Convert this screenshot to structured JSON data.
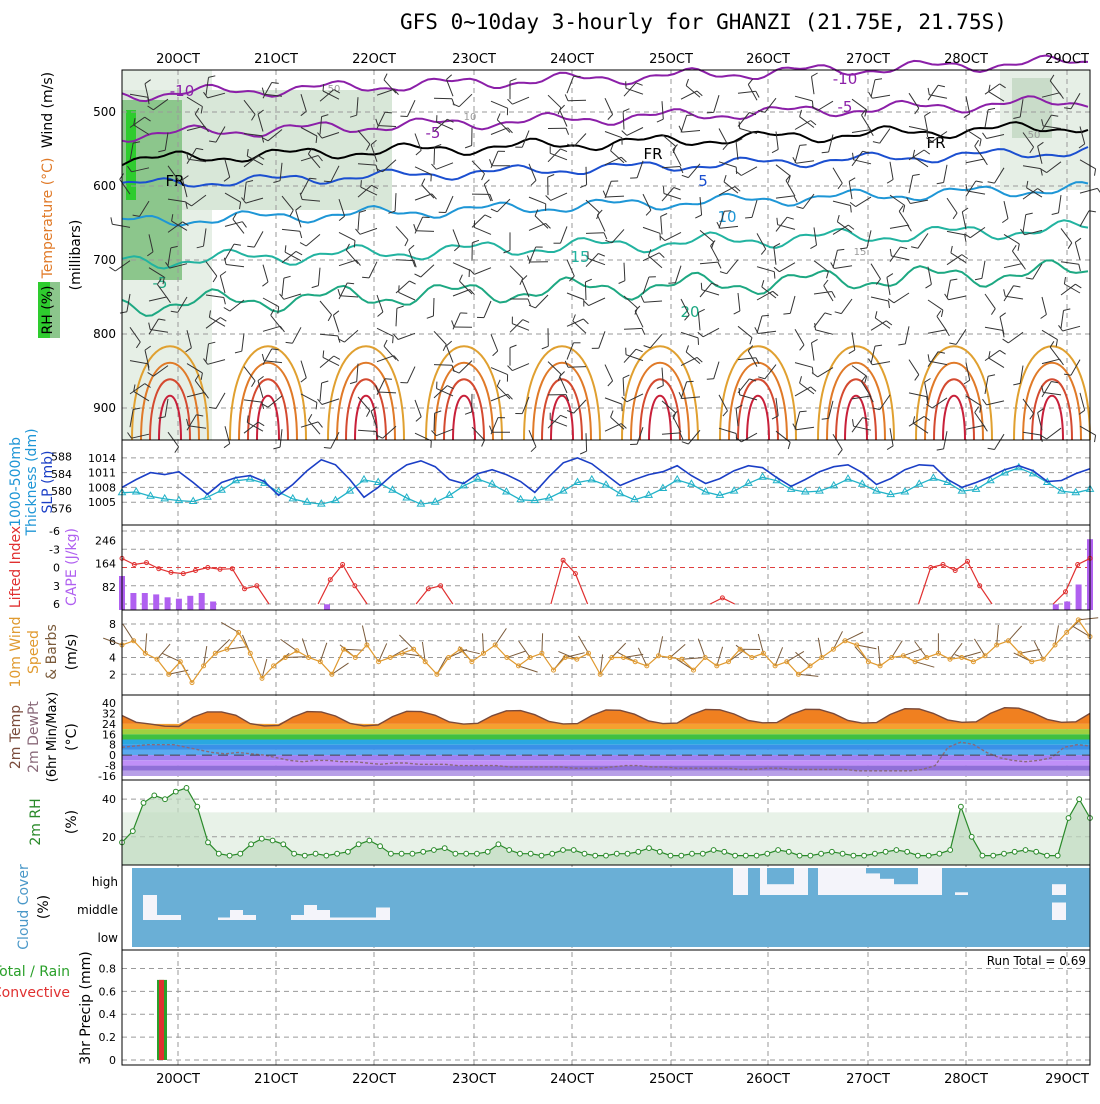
{
  "title": "GFS 0~10day 3-hourly for GHANZI (21.75E, 21.75S)",
  "dates": [
    "20OCT",
    "21OCT",
    "22OCT",
    "23OCT",
    "24OCT",
    "25OCT",
    "26OCT",
    "27OCT",
    "28OCT",
    "29OCT"
  ],
  "panels": {
    "upper": {
      "ylabel_rh": "RH (%)",
      "ylabel_temp": "Temperature (°C)",
      "ylabel_wind": "Wind (m/s)",
      "ylabel_p": "(millibars)",
      "p_ticks": [
        500,
        600,
        700,
        800,
        900
      ]
    },
    "slp": {
      "label_a": "1000-500mb",
      "label_b": "Thickness (dm)",
      "label_c": "SLP (mb)",
      "thick_ticks": [
        588,
        584,
        580,
        576
      ],
      "slp_ticks": [
        1014,
        1011,
        1008,
        1005
      ]
    },
    "cape": {
      "label_li": "Lifted Index",
      "label_cape": "CAPE (J/kg)",
      "li_ticks": [
        "-6",
        "-3",
        "0",
        "3",
        "6"
      ],
      "cape_ticks": [
        "246",
        "164",
        "82"
      ]
    },
    "wind": {
      "label_a": "10m Wind",
      "label_b": "Speed",
      "label_c": "& Barbs",
      "label_d": "(m/s)",
      "ticks": [
        2,
        4,
        6,
        8
      ]
    },
    "temp": {
      "label_a": "2m Temp",
      "label_b": "2m DewPt",
      "label_c": "(6hr Min/Max)",
      "label_d": "(°C)",
      "ticks": [
        40,
        32,
        24,
        16,
        8,
        0,
        -8,
        -16
      ]
    },
    "rh": {
      "label_a": "2m RH",
      "label_b": "(%)",
      "ticks": [
        20,
        40
      ]
    },
    "cloud": {
      "label_a": "Cloud Cover",
      "label_b": "(%)",
      "levels": [
        "high",
        "middle",
        "low"
      ]
    },
    "precip": {
      "label_a": "Total / Rain",
      "label_b": "Convective",
      "label_c": "3hr Precip (mm)",
      "run_total": "Run Total = 0.69",
      "ticks": [
        "0",
        "0.2",
        "0.4",
        "0.6",
        "0.8"
      ]
    }
  },
  "contour_labels": [
    "-10",
    "-5",
    "FR",
    "5",
    "10",
    "15",
    "20",
    "-10",
    "-5",
    "FR",
    "FR",
    "-5",
    "50",
    "50",
    "10",
    "15"
  ],
  "chart_data": {
    "type": "line",
    "x_axis": "3-hourly time steps, 19 Oct 21Z to 29 Oct 21Z",
    "slp_mb": [
      1008.0,
      1009.6,
      1011.0,
      1010.6,
      1011.2,
      1009.0,
      1006.6,
      1009.0,
      1010.0,
      1010.4,
      1009.2,
      1006.4,
      1008.6,
      1011.4,
      1013.6,
      1012.6,
      1009.6,
      1006.0,
      1008.0,
      1010.6,
      1012.6,
      1013.4,
      1012.2,
      1009.6,
      1008.8,
      1010.8,
      1011.6,
      1010.6,
      1009.2,
      1007.0,
      1010.2,
      1013.0,
      1014.0,
      1012.8,
      1010.6,
      1008.4,
      1009.6,
      1010.6,
      1011.2,
      1012.4,
      1010.4,
      1008.8,
      1009.8,
      1011.4,
      1012.4,
      1012.0,
      1010.0,
      1008.2,
      1009.6,
      1011.2,
      1012.2,
      1012.6,
      1011.0,
      1008.6,
      1009.8,
      1011.6,
      1012.6,
      1012.4,
      1009.6,
      1008.0,
      1009.0,
      1010.2,
      1011.6,
      1012.4,
      1011.4,
      1009.2,
      1009.4,
      1010.8,
      1011.8
    ],
    "thickness_dm": [
      579.6,
      579.8,
      578.8,
      578.2,
      577.8,
      577.6,
      578.6,
      580.2,
      582.4,
      582.8,
      581.8,
      579.8,
      578.2,
      577.4,
      577.0,
      577.8,
      580.0,
      582.6,
      582.0,
      580.2,
      578.4,
      577.0,
      577.4,
      579.0,
      581.2,
      582.8,
      581.6,
      579.8,
      578.0,
      577.8,
      578.4,
      580.0,
      582.0,
      582.6,
      581.4,
      579.4,
      578.0,
      579.0,
      580.6,
      582.6,
      581.6,
      579.8,
      579.0,
      580.0,
      581.8,
      583.2,
      582.4,
      580.4,
      579.8,
      580.0,
      581.2,
      582.8,
      581.6,
      580.0,
      579.2,
      579.8,
      581.6,
      583.0,
      582.0,
      580.0,
      580.4,
      582.4,
      584.2,
      585.4,
      584.0,
      582.0,
      580.0,
      579.6,
      580.4
    ],
    "lifted_index": [
      -1.5,
      -0.5,
      -0.8,
      0.2,
      0.8,
      1.0,
      0.5,
      0.0,
      0.3,
      0.2,
      3.5,
      3.0,
      6,
      6,
      6,
      6,
      6,
      2.0,
      -0.5,
      3.0,
      6,
      6,
      6,
      6,
      6,
      3.5,
      3.0,
      6,
      6,
      6,
      6,
      6,
      6,
      6,
      6,
      6,
      -1.2,
      1.0,
      6,
      6,
      6,
      6,
      6,
      6,
      6,
      6,
      6,
      6,
      6,
      5.0,
      6,
      6,
      6,
      6,
      6,
      6,
      6,
      6,
      6,
      6,
      6,
      6,
      6,
      6,
      6,
      6,
      0.0,
      -0.5,
      0.5,
      -1.0,
      3.0,
      6,
      6,
      6,
      6,
      6,
      6,
      4.0,
      -0.5,
      -1.5
    ],
    "cape_jkg": [
      120,
      60,
      60,
      55,
      45,
      40,
      50,
      60,
      30,
      0,
      0,
      0,
      0,
      0,
      0,
      0,
      0,
      0,
      20,
      0,
      0,
      0,
      0,
      0,
      0,
      0,
      0,
      0,
      0,
      0,
      0,
      0,
      0,
      0,
      0,
      0,
      0,
      0,
      0,
      0,
      0,
      0,
      0,
      0,
      0,
      0,
      0,
      0,
      0,
      0,
      0,
      0,
      0,
      0,
      0,
      0,
      0,
      0,
      0,
      0,
      0,
      0,
      0,
      0,
      0,
      0,
      0,
      0,
      0,
      0,
      0,
      0,
      0,
      0,
      0,
      0,
      0,
      0,
      0,
      0,
      0,
      0,
      20,
      30,
      90,
      250
    ],
    "wind_speed_ms": [
      5.5,
      6.0,
      4.5,
      3.8,
      2.0,
      3.5,
      1.0,
      3.0,
      4.5,
      5.0,
      7.0,
      4.5,
      1.5,
      3.0,
      4.0,
      4.8,
      4.0,
      3.5,
      2.0,
      5.0,
      4.0,
      5.5,
      3.5,
      4.0,
      4.5,
      5.0,
      3.5,
      2.0,
      4.0,
      5.0,
      3.5,
      4.5,
      5.5,
      4.0,
      3.0,
      4.0,
      4.5,
      2.5,
      4.0,
      3.8,
      4.5,
      2.0,
      4.0,
      4.0,
      3.5,
      3.0,
      4.2,
      4.0,
      3.8,
      2.5,
      4.0,
      3.0,
      3.5,
      5.0,
      4.0,
      4.5,
      3.0,
      3.5,
      2.0,
      3.0,
      4.0,
      5.0,
      6.0,
      5.5,
      3.5,
      3.0,
      4.0,
      4.2,
      3.5,
      4.0,
      4.5,
      3.8,
      4.0,
      3.5,
      4.2,
      5.5,
      6.0,
      4.5,
      3.5,
      3.8,
      5.5,
      7.0,
      8.5,
      6.5
    ],
    "temp_2m_c": [
      30.4,
      25.2,
      23.8,
      22.2,
      22.0,
      29.2,
      33.2,
      33.2,
      30.6,
      24.2,
      22.4,
      22.8,
      29.2,
      33.4,
      33.2,
      30.0,
      24.4,
      22.4,
      23.2,
      29.6,
      33.6,
      33.4,
      30.6,
      25.4,
      23.8,
      24.4,
      30.2,
      34.0,
      34.2,
      31.0,
      25.8,
      24.0,
      24.2,
      30.4,
      34.6,
      34.4,
      31.4,
      26.2,
      24.2,
      24.6,
      31.0,
      35.0,
      34.8,
      31.6,
      26.6,
      24.8,
      25.0,
      31.2,
      35.2,
      35.0,
      31.8,
      26.6,
      24.6,
      25.0,
      31.4,
      35.6,
      35.4,
      32.0,
      27.0,
      25.2,
      25.6,
      32.0,
      36.4,
      36.0,
      32.4,
      27.4,
      25.2,
      25.6,
      32.0
    ],
    "dewpt_2m_c": [
      6,
      7,
      8,
      8,
      8,
      6,
      4,
      2,
      1,
      2,
      1,
      0,
      -2,
      -4,
      -5,
      -4,
      -4,
      -5,
      -5,
      -6,
      -7,
      -6,
      -6,
      -7,
      -7,
      -7,
      -8,
      -8,
      -8,
      -8,
      -9,
      -9,
      -9,
      -9,
      -9,
      -10,
      -10,
      -10,
      -9,
      -8,
      -8,
      -9,
      -9,
      -10,
      -10,
      -10,
      -10,
      -10,
      -11,
      -11,
      -10,
      -10,
      -11,
      -11,
      -11,
      -11,
      -11,
      -12,
      -12,
      -12,
      -12,
      -12,
      -11,
      -8,
      6,
      10,
      8,
      2,
      -2,
      -4,
      -5,
      -4,
      -2,
      6,
      8,
      7
    ],
    "rh_2m_pct": [
      17,
      23,
      38,
      42,
      40,
      44,
      46,
      36,
      17,
      11,
      10,
      11,
      16,
      19,
      18,
      16,
      11,
      10,
      11,
      10,
      11,
      12,
      16,
      18,
      15,
      11,
      11,
      11,
      12,
      13,
      14,
      11,
      11,
      11,
      12,
      16,
      13,
      11,
      11,
      10,
      11,
      13,
      13,
      11,
      10,
      10,
      11,
      11,
      12,
      14,
      12,
      10,
      10,
      11,
      11,
      13,
      12,
      10,
      10,
      10,
      11,
      13,
      12,
      10,
      10,
      11,
      12,
      11,
      10,
      10,
      11,
      12,
      13,
      12,
      10,
      10,
      11,
      13,
      36,
      20,
      10,
      10,
      11,
      12,
      13,
      12,
      10,
      10,
      30,
      40,
      30
    ],
    "cloud_cover": {
      "high": [
        [
          55.8,
          1
        ],
        [
          56.8,
          0
        ],
        [
          57.5,
          1
        ],
        [
          58.2,
          0.6
        ],
        [
          59.2,
          1
        ],
        [
          61.2,
          0.8
        ],
        [
          62.2,
          0.6
        ],
        [
          63.4,
          0.4
        ],
        [
          64.6,
          0.6
        ],
        [
          65.2,
          0.5
        ],
        [
          66.0,
          0.8
        ],
        [
          67.6,
          0.1
        ],
        [
          68.8,
          0.4
        ]
      ],
      "middle": [
        [
          19.4,
          0.8
        ],
        [
          19.8,
          0.4
        ],
        [
          20.2,
          0.3
        ],
        [
          20.9,
          0.3
        ],
        [
          21.4,
          0.2
        ],
        [
          21.9,
          0.1
        ],
        [
          21.6,
          0.35
        ],
        [
          21.9,
          0.2
        ],
        [
          22.2,
          0.2
        ],
        [
          22.6,
          0.35
        ],
        [
          23.1,
          0.2
        ],
        [
          29.1,
          0.8
        ]
      ],
      "low": []
    },
    "precip_3hr_mm": {
      "total": [
        0.7
      ],
      "convective": [
        0.7
      ],
      "at_index": 1
    }
  }
}
